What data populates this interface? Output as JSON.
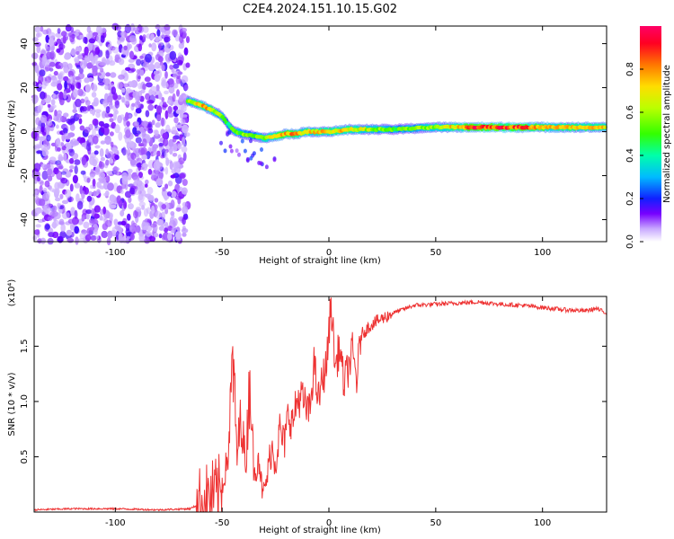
{
  "title": "C2E4.2024.151.10.15.G02",
  "chart_data": [
    {
      "type": "heatmap",
      "xlabel": "Height of straight line (km)",
      "ylabel": "Frequency (Hz)",
      "xlim": [
        -138,
        130
      ],
      "ylim": [
        -50,
        48
      ],
      "x_ticks": [
        -100,
        -50,
        0,
        50,
        100
      ],
      "y_ticks": [
        -40,
        -20,
        0,
        20,
        40
      ],
      "colorbar": {
        "label": "Normalized spectral amplitude",
        "range": [
          0,
          1
        ],
        "ticks": [
          0.0,
          0.2,
          0.4,
          0.6,
          0.8
        ]
      },
      "noise_region": {
        "x_start": -138,
        "x_end": -66
      },
      "ridge": {
        "x": [
          -66,
          -60,
          -55,
          -50,
          -47,
          -44,
          -40,
          -35,
          -30,
          -25,
          -20,
          -15,
          -10,
          -5,
          0,
          10,
          20,
          30,
          50,
          70,
          90,
          110,
          130
        ],
        "freq": [
          14,
          12,
          10,
          7,
          3,
          0,
          -1,
          -2,
          -3,
          -2,
          -1,
          -1,
          0,
          0,
          0,
          1,
          1,
          1,
          2,
          2,
          2,
          2,
          2
        ],
        "amplitude": [
          0.55,
          0.75,
          0.7,
          0.55,
          0.45,
          0.5,
          0.55,
          0.5,
          0.6,
          0.75,
          0.8,
          0.75,
          0.7,
          0.7,
          0.72,
          0.7,
          0.6,
          0.5,
          0.6,
          0.9,
          0.85,
          0.7,
          0.7
        ]
      }
    },
    {
      "type": "line",
      "xlabel": "Height of straight line (km)",
      "ylabel": "SNR (10 * v/v)",
      "scale_label": "(x10⁴)",
      "xlim": [
        -138,
        130
      ],
      "ylim": [
        0,
        1.95
      ],
      "x_ticks": [
        -100,
        -50,
        0,
        50,
        100
      ],
      "y_ticks": [
        0.5,
        1.0,
        1.5
      ],
      "color": "#ee3333",
      "series": [
        {
          "x": [
            -138,
            -120,
            -100,
            -80,
            -65,
            -60,
            -55,
            -50,
            -47,
            -45,
            -43,
            -41,
            -39,
            -37,
            -35,
            -33,
            -31,
            -29,
            -27,
            -25,
            -23,
            -21,
            -19,
            -17,
            -15,
            -13,
            -11,
            -9,
            -7,
            -5,
            -3,
            -1,
            1,
            3,
            5,
            7,
            9,
            11,
            13,
            15,
            20,
            25,
            30,
            40,
            50,
            60,
            70,
            80,
            90,
            100,
            110,
            120,
            125,
            130
          ],
          "values": [
            0.02,
            0.03,
            0.03,
            0.02,
            0.03,
            0.08,
            0.13,
            0.2,
            0.55,
            1.4,
            0.5,
            0.9,
            0.4,
            1.25,
            0.3,
            0.55,
            0.15,
            0.3,
            0.6,
            0.45,
            0.75,
            0.6,
            0.9,
            0.8,
            1.0,
            1.05,
            0.95,
            0.9,
            1.35,
            1.0,
            1.2,
            1.35,
            1.9,
            1.3,
            1.5,
            1.15,
            1.3,
            1.45,
            1.2,
            1.6,
            1.7,
            1.75,
            1.8,
            1.87,
            1.88,
            1.89,
            1.9,
            1.88,
            1.87,
            1.85,
            1.83,
            1.82,
            1.84,
            1.8
          ]
        }
      ]
    }
  ]
}
